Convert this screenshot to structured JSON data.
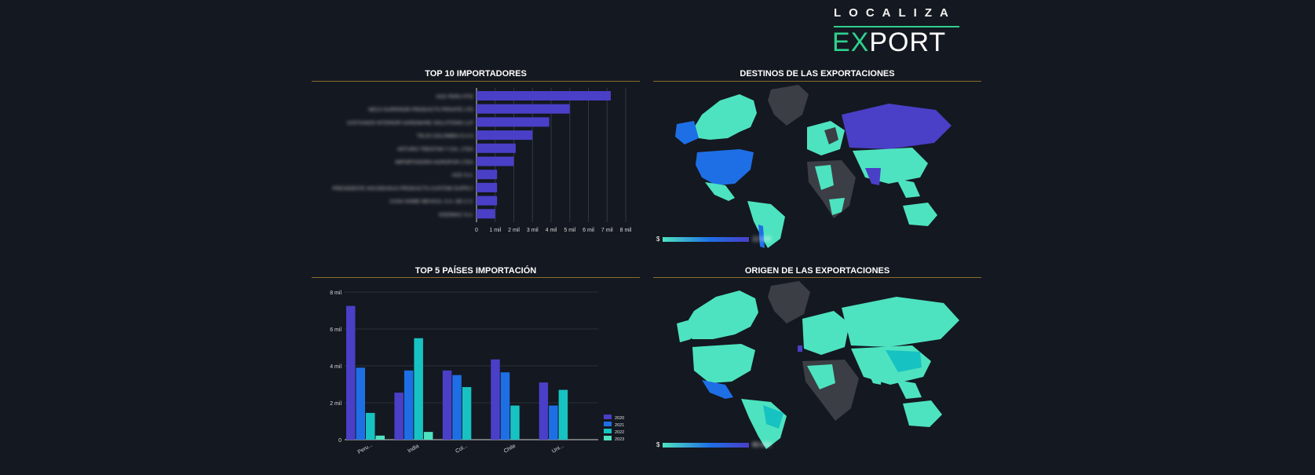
{
  "header": {
    "logo_top": "LOCALIZA",
    "logo_bottom_ex": "EX",
    "logo_bottom_rest": "PORT"
  },
  "colors": {
    "background": "#141820",
    "bar_purple": "#4a3fc7",
    "series_2020": "#4a3fc7",
    "series_2021": "#1e6fe6",
    "series_2022": "#17c2c2",
    "series_2023": "#4ee3c0",
    "rule_gold": "#8b6d2a",
    "map_teal": "#4ee3c0",
    "map_grey": "#3b3e44"
  },
  "panels": {
    "top10_title": "TOP 10 IMPORTADORES",
    "destinos_title": "DESTINOS DE LAS EXPORTACIONES",
    "top5_title": "TOP 5 PAÍSES IMPORTACIÓN",
    "origen_title": "ORIGEN DE LAS EXPORTACIONES"
  },
  "map_legends": {
    "destinos_min": "$",
    "destinos_max": "12.000",
    "origen_min": "$",
    "origen_max": "60.000"
  },
  "chart_data": [
    {
      "type": "bar",
      "orientation": "horizontal",
      "title": "TOP 10 IMPORTADORES",
      "categories": [
        "ACE PERU PTE",
        "NECA SUPERIOR PRODUCTS PRIVATE LTD",
        "JUSTIANOS INTERIOR HARDWARE SOLUTIONS LLP",
        "TELIS COLOMBIA S.A.S",
        "ARTURO TRENTINI Y CIA. LTDA",
        "IMPORTADORA AGROPUR LTDA",
        "ACE S.A.",
        "PRESIDENTE HOUSEHOLD PRODUCTS CUSTOM SUPPLY",
        "CASA HOME MEXICO, S.A. DE C.V.",
        "SODIMAC S.A."
      ],
      "values": [
        7200,
        5000,
        3900,
        3000,
        2100,
        2000,
        1100,
        1100,
        1100,
        1000
      ],
      "x_ticks": [
        "0",
        "1 mil",
        "2 mil",
        "3 mil",
        "4 mil",
        "5 mil",
        "6 mil",
        "7 mil",
        "8 mil"
      ],
      "xlim": [
        0,
        8000
      ],
      "grid": true
    },
    {
      "type": "bar",
      "title": "TOP 5 PAÍSES IMPORTACIÓN",
      "categories": [
        "Peru...",
        "India",
        "Col...",
        "Chile",
        "Uni..."
      ],
      "series": [
        {
          "name": "2020",
          "values": [
            7250,
            2550,
            3750,
            4350,
            3100
          ]
        },
        {
          "name": "2021",
          "values": [
            3900,
            3750,
            3500,
            3650,
            1850
          ]
        },
        {
          "name": "2022",
          "values": [
            1450,
            5500,
            2850,
            1850,
            2700
          ]
        },
        {
          "name": "2023",
          "values": [
            220,
            420,
            0,
            0,
            0
          ]
        }
      ],
      "y_ticks": [
        "0",
        "2 mil",
        "4 mil",
        "6 mil",
        "8 mil"
      ],
      "ylim": [
        0,
        8000
      ],
      "legend": "bottom-right",
      "grid": true
    }
  ]
}
